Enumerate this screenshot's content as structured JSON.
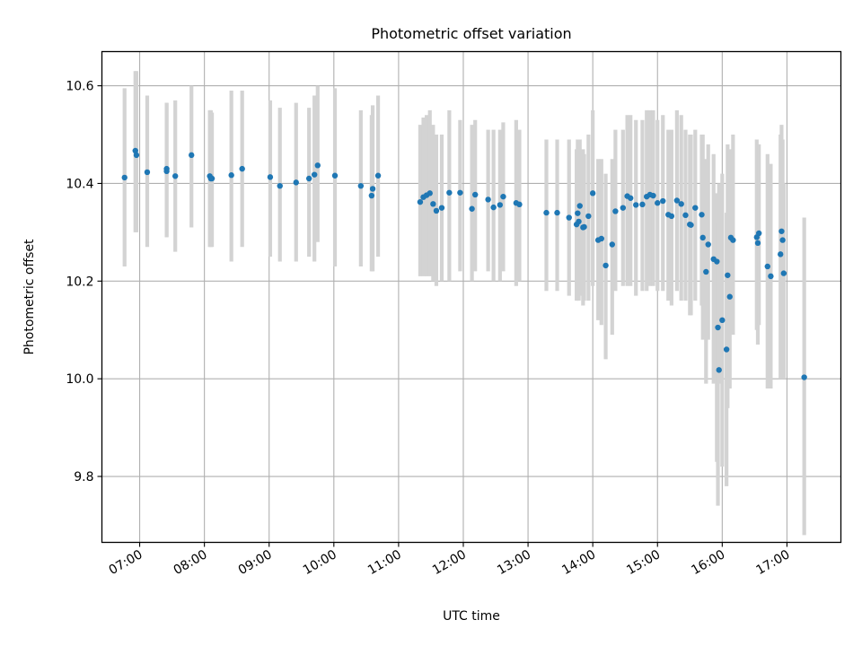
{
  "chart_data": {
    "type": "scatter",
    "title": "Photometric offset variation",
    "xlabel": "UTC time",
    "ylabel": "Photometric offset",
    "xlim": [
      "06:25",
      "17:50"
    ],
    "ylim": [
      9.665,
      10.67
    ],
    "grid": true,
    "legend": "none",
    "x_ticks": [
      "07:00",
      "08:00",
      "09:00",
      "10:00",
      "11:00",
      "12:00",
      "13:00",
      "14:00",
      "15:00",
      "16:00",
      "17:00"
    ],
    "y_ticks": [
      9.8,
      10.0,
      10.2,
      10.4,
      10.6
    ],
    "marker_color": "#1f77b4",
    "errorbar_color": "#d3d3d3",
    "series": [
      {
        "x": [
          "06:46",
          "06:56",
          "06:57",
          "07:07",
          "07:25",
          "07:25",
          "07:33",
          "07:48",
          "08:05",
          "08:06",
          "08:07",
          "08:25",
          "08:35",
          "09:01",
          "09:10",
          "09:25",
          "09:37",
          "09:42",
          "09:45",
          "10:01",
          "10:25",
          "10:35",
          "10:36",
          "10:41",
          "11:20",
          "11:23",
          "11:26",
          "11:29",
          "11:32",
          "11:35",
          "11:40",
          "11:47",
          "11:57",
          "12:08",
          "12:11",
          "12:23",
          "12:28",
          "12:34",
          "12:37",
          "12:49",
          "12:52",
          "13:17",
          "13:27",
          "13:38",
          "13:45",
          "13:46",
          "13:47",
          "13:48",
          "13:51",
          "13:52",
          "13:56",
          "14:00",
          "14:05",
          "14:08",
          "14:12",
          "14:18",
          "14:21",
          "14:28",
          "14:32",
          "14:35",
          "14:40",
          "14:46",
          "14:50",
          "14:53",
          "14:56",
          "15:00",
          "15:05",
          "15:10",
          "15:13",
          "15:18",
          "15:22",
          "15:26",
          "15:30",
          "15:31",
          "15:35",
          "15:41",
          "15:42",
          "15:45",
          "15:47",
          "15:52",
          "15:55",
          "15:56",
          "15:57",
          "16:00",
          "16:04",
          "16:05",
          "16:07",
          "16:08",
          "16:10",
          "16:32",
          "16:33",
          "16:34",
          "16:42",
          "16:45",
          "16:54",
          "16:55",
          "16:56",
          "16:57",
          "17:16"
        ],
        "y": [
          10.412,
          10.467,
          10.458,
          10.423,
          10.43,
          10.425,
          10.415,
          10.458,
          10.415,
          10.41,
          10.41,
          10.417,
          10.43,
          10.413,
          10.395,
          10.402,
          10.41,
          10.418,
          10.437,
          10.416,
          10.395,
          10.375,
          10.389,
          10.416,
          10.362,
          10.372,
          10.376,
          10.38,
          10.358,
          10.344,
          10.35,
          10.381,
          10.381,
          10.348,
          10.377,
          10.367,
          10.351,
          10.356,
          10.373,
          10.36,
          10.357,
          10.34,
          10.34,
          10.33,
          10.316,
          10.339,
          10.322,
          10.354,
          10.31,
          10.311,
          10.333,
          10.38,
          10.284,
          10.287,
          10.232,
          10.275,
          10.343,
          10.35,
          10.374,
          10.37,
          10.356,
          10.357,
          10.373,
          10.377,
          10.375,
          10.36,
          10.364,
          10.336,
          10.333,
          10.365,
          10.358,
          10.335,
          10.316,
          10.315,
          10.35,
          10.336,
          10.289,
          10.219,
          10.275,
          10.245,
          10.24,
          10.105,
          10.018,
          10.12,
          10.06,
          10.212,
          10.168,
          10.289,
          10.284,
          10.29,
          10.278,
          10.298,
          10.23,
          10.21,
          10.255,
          10.302,
          10.284,
          10.216,
          10.003
        ],
        "yerr_low": [
          10.23,
          10.3,
          10.3,
          10.27,
          10.29,
          10.29,
          10.26,
          10.31,
          10.27,
          10.27,
          10.27,
          10.24,
          10.27,
          10.25,
          10.24,
          10.24,
          10.25,
          10.24,
          10.28,
          10.23,
          10.23,
          10.22,
          10.22,
          10.25,
          10.21,
          10.21,
          10.21,
          10.21,
          10.2,
          10.19,
          10.2,
          10.2,
          10.22,
          10.2,
          10.22,
          10.22,
          10.2,
          10.2,
          10.22,
          10.19,
          10.2,
          10.18,
          10.18,
          10.17,
          10.16,
          10.17,
          10.16,
          10.17,
          10.15,
          10.16,
          10.16,
          10.19,
          10.12,
          10.11,
          10.04,
          10.09,
          10.18,
          10.19,
          10.19,
          10.19,
          10.17,
          10.18,
          10.18,
          10.19,
          10.19,
          10.18,
          10.18,
          10.16,
          10.15,
          10.18,
          10.16,
          10.16,
          10.13,
          10.13,
          10.16,
          10.15,
          10.08,
          9.99,
          10.08,
          9.99,
          9.83,
          9.74,
          9.99,
          9.82,
          9.78,
          9.94,
          9.98,
          10.12,
          10.09,
          10.1,
          10.07,
          10.11,
          9.98,
          9.98,
          10.0,
          10.12,
          10.08,
          10.0,
          9.68
        ],
        "yerr_high": [
          10.595,
          10.63,
          10.63,
          10.58,
          10.565,
          10.565,
          10.57,
          10.6,
          10.55,
          10.55,
          10.545,
          10.59,
          10.59,
          10.57,
          10.555,
          10.565,
          10.555,
          10.58,
          10.6,
          10.595,
          10.55,
          10.54,
          10.56,
          10.58,
          10.52,
          10.535,
          10.54,
          10.55,
          10.52,
          10.5,
          10.5,
          10.55,
          10.53,
          10.52,
          10.53,
          10.51,
          10.51,
          10.51,
          10.525,
          10.53,
          10.51,
          10.49,
          10.49,
          10.49,
          10.47,
          10.49,
          10.48,
          10.49,
          10.47,
          10.46,
          10.5,
          10.55,
          10.45,
          10.45,
          10.42,
          10.45,
          10.51,
          10.51,
          10.54,
          10.54,
          10.53,
          10.53,
          10.55,
          10.55,
          10.55,
          10.53,
          10.54,
          10.51,
          10.51,
          10.55,
          10.54,
          10.51,
          10.5,
          10.5,
          10.51,
          10.5,
          10.5,
          10.45,
          10.48,
          10.46,
          10.38,
          10.32,
          10.4,
          10.42,
          10.34,
          10.48,
          10.35,
          10.47,
          10.5,
          10.49,
          10.48,
          10.48,
          10.46,
          10.44,
          10.5,
          10.52,
          10.49,
          10.4,
          10.33
        ]
      }
    ]
  }
}
